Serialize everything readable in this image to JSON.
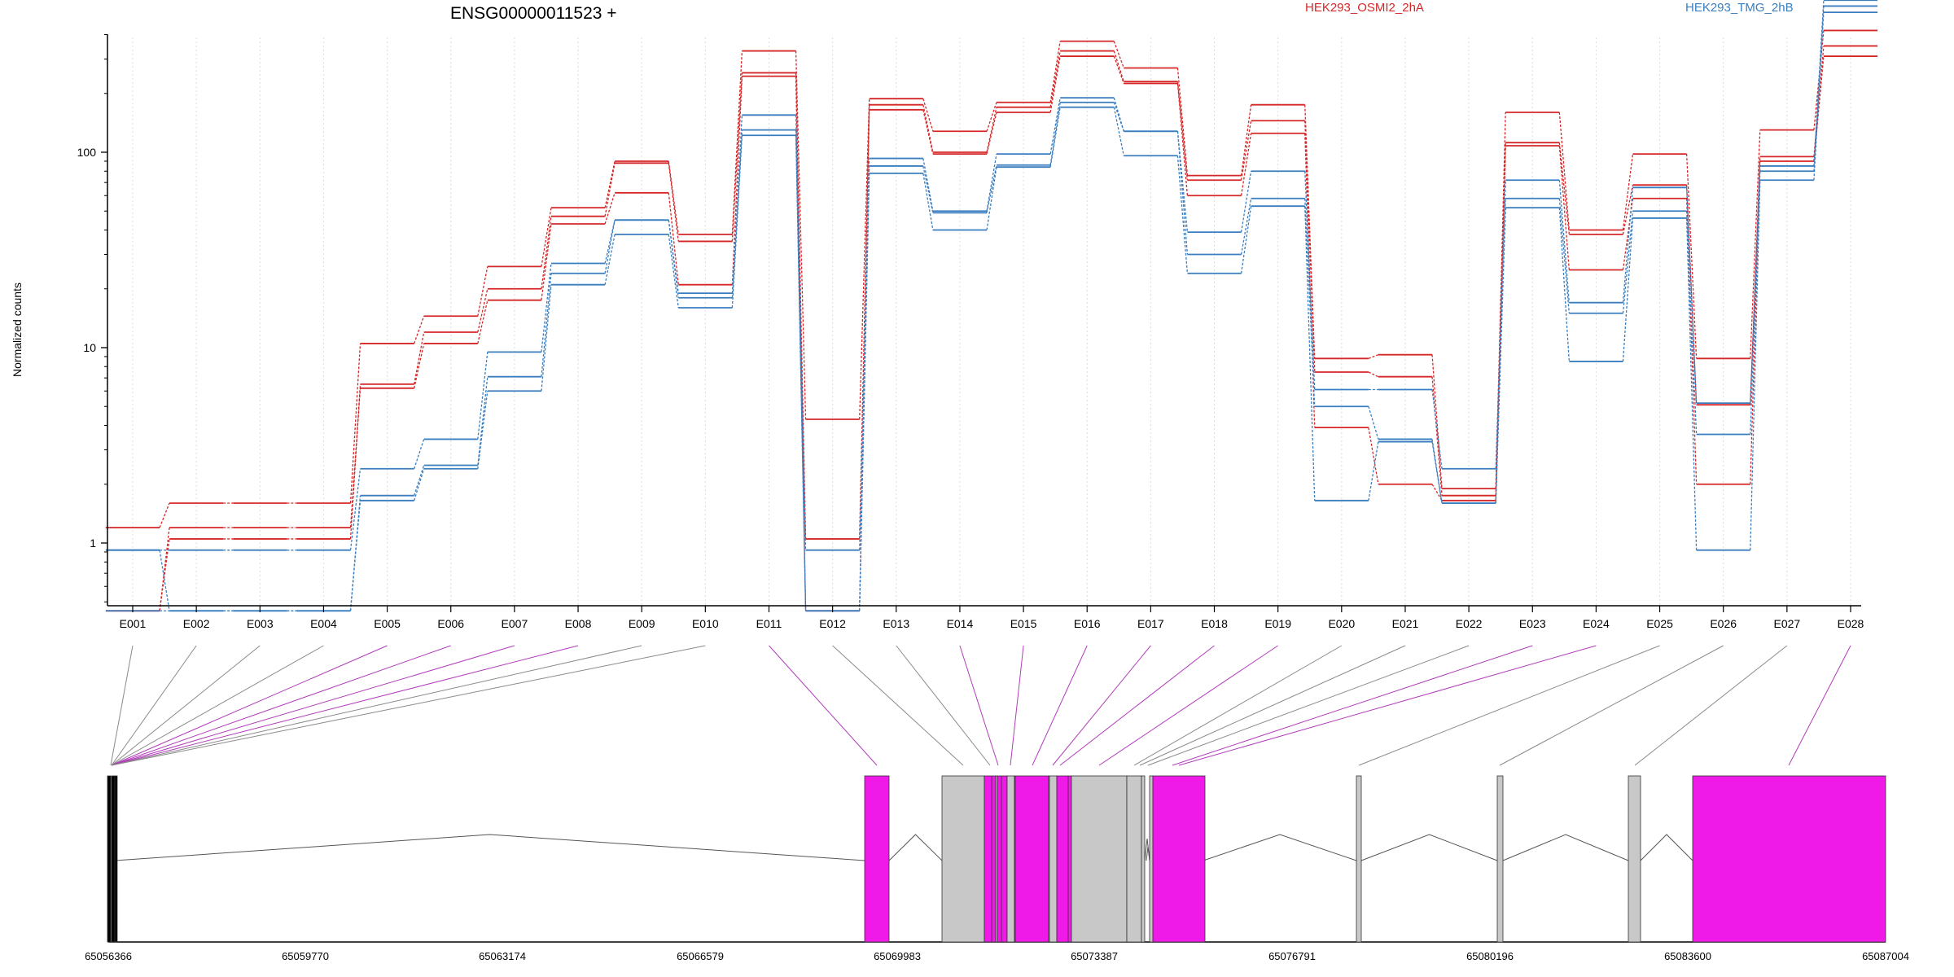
{
  "chart_data": {
    "type": "line",
    "title": "ENSG00000011523 +",
    "ylabel": "Normalized counts",
    "yscale": "log",
    "ylim": [
      0.45,
      800
    ],
    "yticks": [
      1,
      10,
      100
    ],
    "ytick_labels": [
      "1",
      "10",
      "100"
    ],
    "categories": [
      "E001",
      "E002",
      "E003",
      "E004",
      "E005",
      "E006",
      "E007",
      "E008",
      "E009",
      "E010",
      "E011",
      "E012",
      "E013",
      "E014",
      "E015",
      "E016",
      "E017",
      "E018",
      "E019",
      "E020",
      "E021",
      "E022",
      "E023",
      "E024",
      "E025",
      "E026",
      "E027",
      "E028"
    ],
    "legend": [
      {
        "label": "HEK293_OSMI2_2hA",
        "color": "#d62728"
      },
      {
        "label": "HEK293_TMG_2hB",
        "color": "#3a7ebf"
      }
    ],
    "series": [
      {
        "group": "HEK293_OSMI2_2hA",
        "color": "#d62728",
        "values": [
          1.2,
          1.6,
          1.6,
          1.6,
          10.5,
          14.5,
          26,
          52,
          90,
          38,
          330,
          4.3,
          188,
          128,
          180,
          370,
          270,
          76,
          175,
          8.8,
          9.2,
          1.9,
          160,
          40,
          98,
          8.8,
          130,
          420
        ]
      },
      {
        "group": "HEK293_OSMI2_2hA",
        "color": "#d62728",
        "values": [
          0.45,
          1.05,
          1.05,
          1.05,
          6.5,
          12,
          20,
          47,
          88,
          35,
          255,
          1.05,
          175,
          100,
          170,
          330,
          230,
          72,
          145,
          7.5,
          7.1,
          1.75,
          112,
          38,
          68,
          5.1,
          95,
          350
        ]
      },
      {
        "group": "HEK293_OSMI2_2hA",
        "color": "#d62728",
        "values": [
          0.45,
          1.2,
          1.2,
          1.2,
          6.2,
          10.5,
          17.5,
          43,
          62,
          21,
          245,
          0.45,
          165,
          98,
          160,
          310,
          225,
          60,
          125,
          3.9,
          2,
          1.65,
          108,
          25,
          58,
          2,
          90,
          310
        ]
      },
      {
        "group": "HEK293_TMG_2hB",
        "color": "#3a7ebf",
        "values": [
          0.92,
          0.92,
          0.92,
          0.92,
          2.4,
          3.4,
          9.5,
          27,
          45,
          19,
          155,
          0.92,
          93,
          50,
          98,
          190,
          128,
          39,
          80,
          6.1,
          6.1,
          2.4,
          72,
          17,
          66,
          5.2,
          85,
          600
        ]
      },
      {
        "group": "HEK293_TMG_2hB",
        "color": "#3a7ebf",
        "values": [
          0.92,
          0.45,
          0.45,
          0.45,
          1.75,
          2.5,
          7.1,
          24,
          45,
          18,
          130,
          0.45,
          85,
          49,
          86,
          180,
          128,
          30,
          58,
          5,
          3.4,
          1.6,
          58,
          15,
          50,
          3.6,
          80,
          560
        ]
      },
      {
        "group": "HEK293_TMG_2hB",
        "color": "#3a7ebf",
        "values": [
          0.45,
          0.45,
          0.45,
          0.45,
          1.65,
          2.4,
          6,
          21,
          38,
          16,
          122,
          0.45,
          78,
          40,
          84,
          170,
          96,
          24,
          53,
          1.65,
          3.3,
          1.6,
          52,
          8.5,
          46,
          0.92,
          72,
          520
        ]
      }
    ],
    "gene_model": {
      "coordinate_labels": [
        "65056366",
        "65059770",
        "65063174",
        "65066579",
        "65069983",
        "65073387",
        "65076791",
        "65080196",
        "65083600",
        "65087004"
      ],
      "fill_colors": {
        "highlighted": "#f01ae8",
        "normal": "#c8c8c8"
      }
    }
  }
}
